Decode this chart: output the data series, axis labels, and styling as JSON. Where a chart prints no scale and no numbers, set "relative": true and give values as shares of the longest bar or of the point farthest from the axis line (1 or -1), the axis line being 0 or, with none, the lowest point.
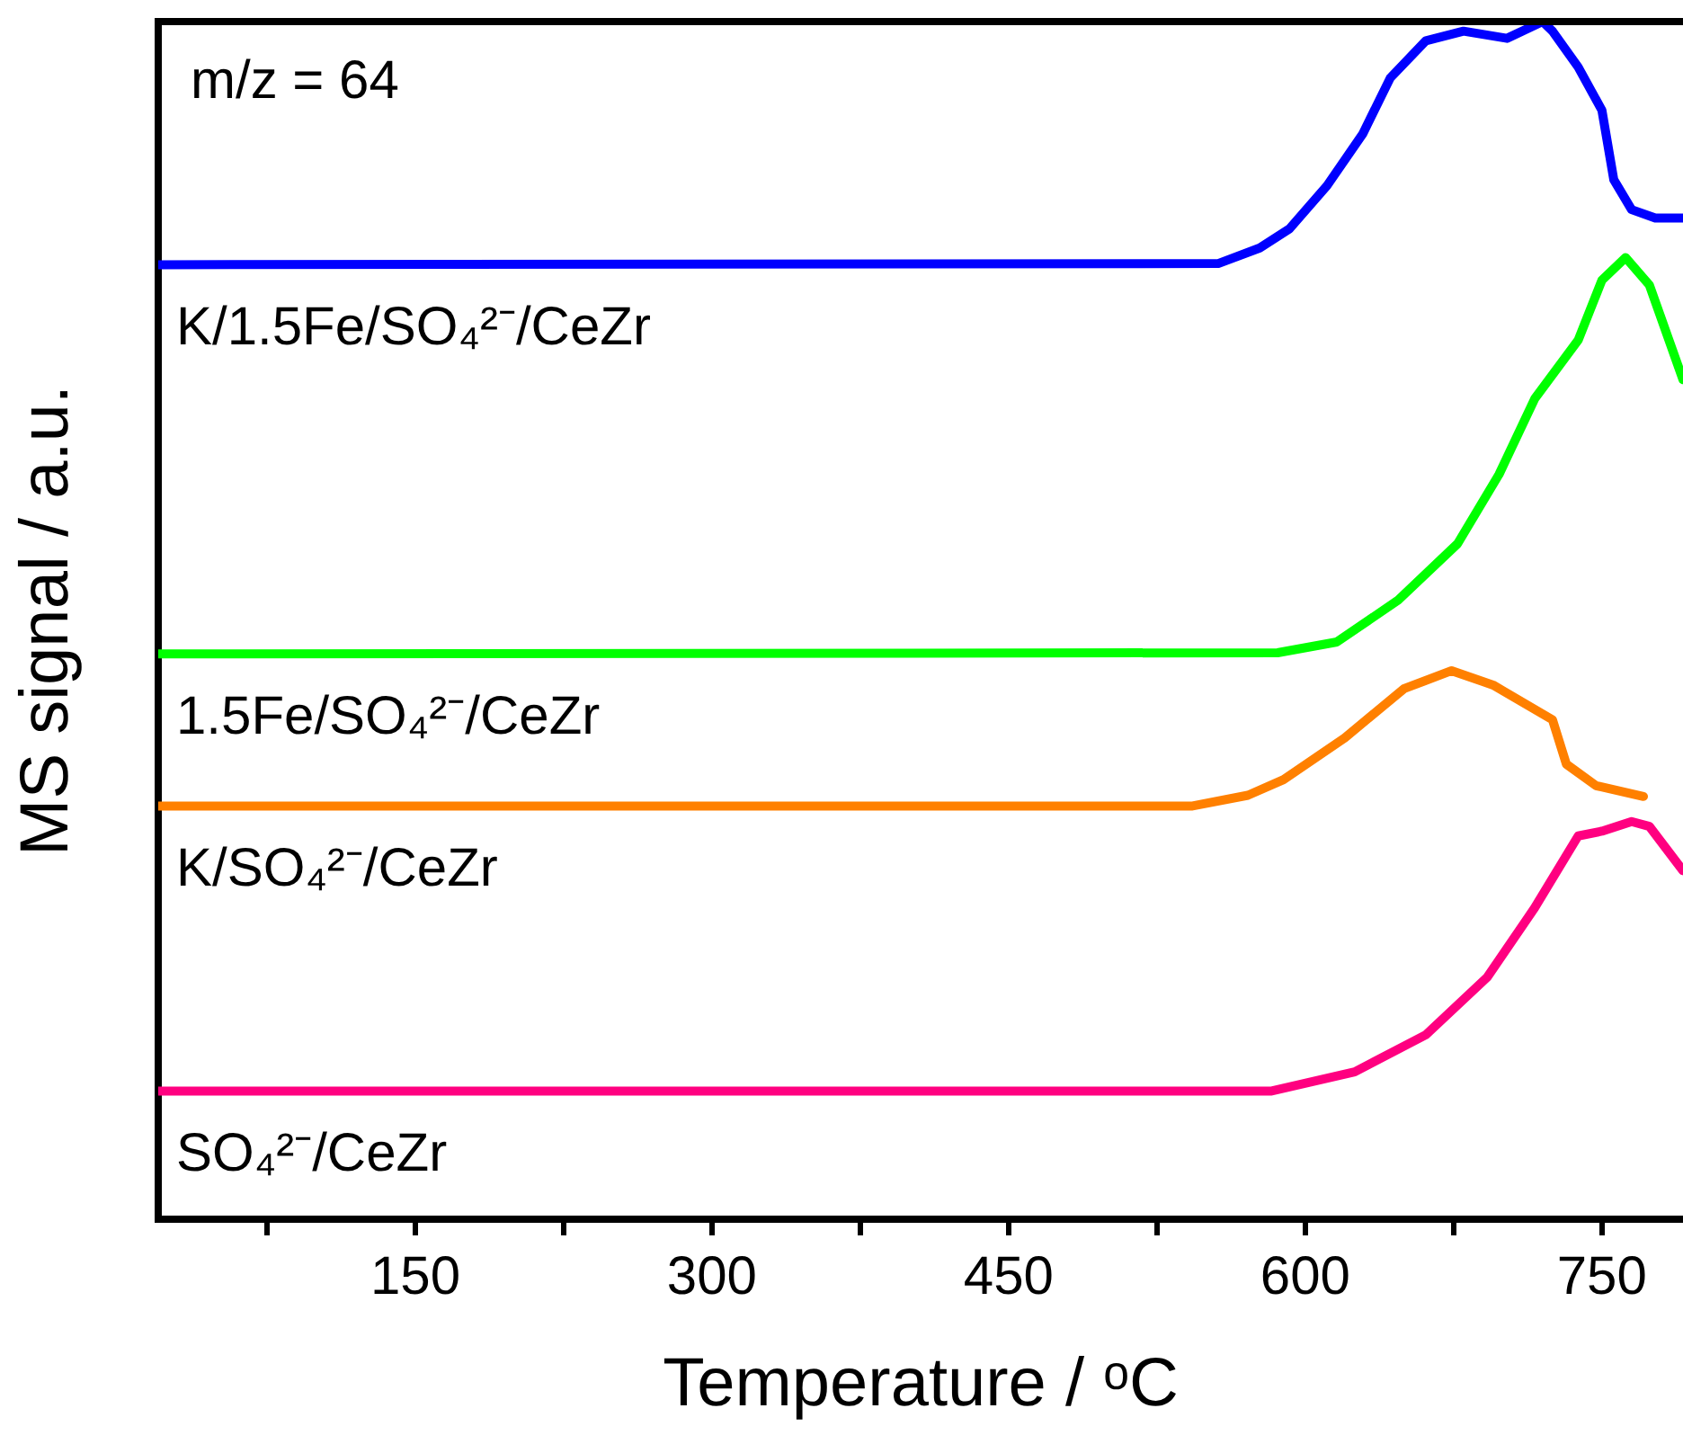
{
  "chart_data": {
    "type": "line",
    "relative": true,
    "xlabel": "Temperature / ᵒC",
    "ylabel": "MS signal / a.u.",
    "annotations": [
      "m/z = 64"
    ],
    "xlim": [
      20,
      791
    ],
    "xticks": [
      {
        "value": 75,
        "label": null
      },
      150,
      {
        "value": 225,
        "label": null
      },
      300,
      {
        "value": 375,
        "label": null
      },
      450,
      {
        "value": 525,
        "label": null
      },
      600,
      {
        "value": 675,
        "label": null
      },
      750
    ],
    "grid": false,
    "legend": false,
    "marker": "none",
    "line_style": "solid",
    "series": [
      {
        "name": "K/1.5Fe/SO₄²⁻/CeZr",
        "color": "#0000ff",
        "x": [
          20,
          556,
          577,
          592,
          611,
          629,
          643,
          661,
          680,
          702,
          720,
          725,
          738,
          750,
          756,
          765,
          777,
          791
        ],
        "values": [
          0.797,
          0.798,
          0.811,
          0.827,
          0.863,
          0.906,
          0.953,
          0.984,
          0.992,
          0.986,
          1,
          0.992,
          0.962,
          0.926,
          0.868,
          0.843,
          0.836,
          0.836
        ]
      },
      {
        "name": "1.5Fe/SO₄²⁻/CeZr",
        "color": "#00ff00",
        "x": [
          20,
          586,
          616,
          647,
          677,
          698,
          716,
          738,
          750,
          762,
          774,
          791
        ],
        "values": [
          0.472,
          0.473,
          0.482,
          0.517,
          0.564,
          0.622,
          0.685,
          0.734,
          0.784,
          0.803,
          0.78,
          0.701
        ]
      },
      {
        "name": "K/SO₄²⁻/CeZr",
        "color": "#ff8000",
        "x": [
          20,
          543,
          571,
          589,
          620,
          650,
          674,
          695,
          725,
          732,
          747,
          771
        ],
        "values": [
          0.345,
          0.345,
          0.354,
          0.367,
          0.402,
          0.443,
          0.458,
          0.446,
          0.417,
          0.38,
          0.362,
          0.353
        ]
      },
      {
        "name": "SO₄²⁻/CeZr",
        "color": "#ff0080",
        "x": [
          20,
          583,
          625,
          661,
          692,
          716,
          738,
          750,
          765,
          774,
          791
        ],
        "values": [
          0.107,
          0.107,
          0.123,
          0.154,
          0.202,
          0.26,
          0.32,
          0.324,
          0.332,
          0.328,
          0.291
        ]
      }
    ]
  }
}
